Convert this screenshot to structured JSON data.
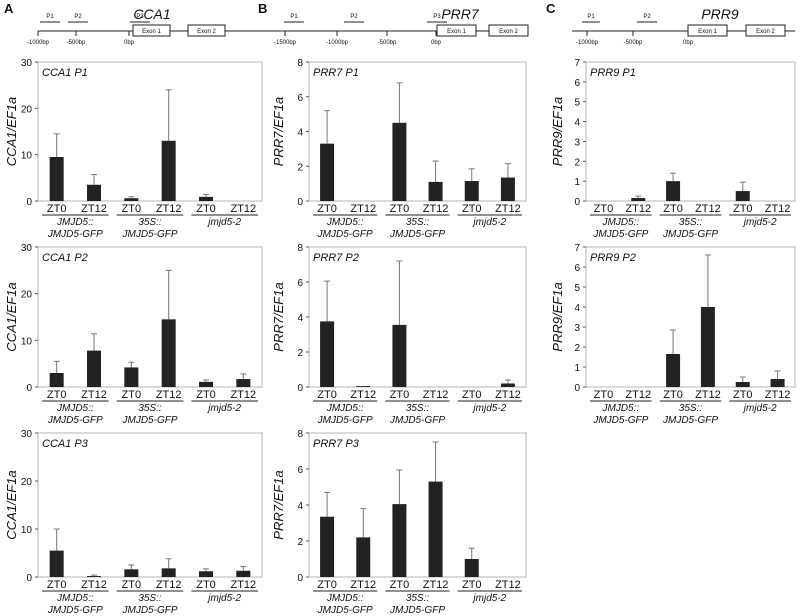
{
  "panels": [
    {
      "letter": "A",
      "gene": "CCA1",
      "diagram": {
        "primers": [
          "P1",
          "P2",
          "P3"
        ],
        "positions": [
          "-1000bp",
          "-500bp",
          "0bp"
        ],
        "exons": [
          "Exon 1",
          "Exon 2"
        ]
      }
    },
    {
      "letter": "B",
      "gene": "PRR7",
      "diagram": {
        "primers": [
          "P1",
          "P2",
          "P3"
        ],
        "positions": [
          "-1500bp",
          "-1000bp",
          "-500bp",
          "0bp"
        ],
        "exons": [
          "Exon 1",
          "Exon 2"
        ]
      }
    },
    {
      "letter": "C",
      "gene": "PRR9",
      "diagram": {
        "primers": [
          "P1",
          "P2"
        ],
        "positions": [
          "-1000bp",
          "-500bp",
          "0bp"
        ],
        "exons": [
          "Exon 1",
          "Exon 2"
        ]
      }
    }
  ],
  "groups": [
    {
      "line1": "JMJD5::",
      "line2": "JMJD5-GFP"
    },
    {
      "line1": "35S::",
      "line2": "JMJD5-GFP"
    },
    {
      "line1": "jmjd5-2",
      "line2": ""
    }
  ],
  "categories": [
    "ZT0",
    "ZT12",
    "ZT0",
    "ZT12",
    "ZT0",
    "ZT12"
  ],
  "chart_data": [
    {
      "type": "bar",
      "panel": "A",
      "title": "CCA1 P1",
      "ylabel": "CCA1/EF1a",
      "ylim": [
        0,
        30
      ],
      "ticks": [
        0,
        10,
        20,
        30
      ],
      "values": [
        9.5,
        3.5,
        0.6,
        13,
        0.9,
        0
      ],
      "errors": [
        5,
        2.2,
        0.3,
        11,
        0.5,
        0
      ]
    },
    {
      "type": "bar",
      "panel": "A",
      "title": "CCA1 P2",
      "ylabel": "CCA1/EF1a",
      "ylim": [
        0,
        30
      ],
      "ticks": [
        0,
        10,
        20,
        30
      ],
      "values": [
        3,
        7.8,
        4.2,
        14.5,
        1.1,
        1.7
      ],
      "errors": [
        2.5,
        3.6,
        1.1,
        10.5,
        0.4,
        1.1
      ]
    },
    {
      "type": "bar",
      "panel": "A",
      "title": "CCA1 P3",
      "ylabel": "CCA1/EF1a",
      "ylim": [
        0,
        30
      ],
      "ticks": [
        0,
        10,
        20,
        30
      ],
      "values": [
        5.5,
        0.2,
        1.6,
        1.8,
        1.2,
        1.3
      ],
      "errors": [
        4.5,
        0.2,
        0.9,
        2,
        0.5,
        0.9
      ]
    },
    {
      "type": "bar",
      "panel": "B",
      "title": "PRR7 P1",
      "ylabel": "PRR7/EF1a",
      "ylim": [
        0,
        8
      ],
      "ticks": [
        0,
        2,
        4,
        6,
        8
      ],
      "values": [
        3.3,
        0,
        4.5,
        1.1,
        1.15,
        1.35
      ],
      "errors": [
        1.9,
        0,
        2.3,
        1.2,
        0.7,
        0.8
      ]
    },
    {
      "type": "bar",
      "panel": "B",
      "title": "PRR7 P2",
      "ylabel": "PRR7/EF1a",
      "ylim": [
        0,
        8
      ],
      "ticks": [
        0,
        2,
        4,
        6,
        8
      ],
      "values": [
        3.75,
        0.05,
        3.55,
        0,
        0,
        0.2
      ],
      "errors": [
        2.3,
        0,
        3.65,
        0,
        0,
        0.2
      ]
    },
    {
      "type": "bar",
      "panel": "B",
      "title": "PRR7 P3",
      "ylabel": "PRR7/EF1a",
      "ylim": [
        0,
        8
      ],
      "ticks": [
        0,
        2,
        4,
        6,
        8
      ],
      "values": [
        3.35,
        2.2,
        4.05,
        5.3,
        1.0,
        0
      ],
      "errors": [
        1.35,
        1.6,
        1.9,
        2.2,
        0.6,
        0
      ]
    },
    {
      "type": "bar",
      "panel": "C",
      "title": "PRR9 P1",
      "ylabel": "PRR9/EF1a",
      "ylim": [
        0,
        7
      ],
      "ticks": [
        0,
        1,
        2,
        3,
        4,
        5,
        6,
        7
      ],
      "values": [
        0,
        0.15,
        1.0,
        0,
        0.5,
        0
      ],
      "errors": [
        0,
        0.1,
        0.4,
        0,
        0.45,
        0
      ]
    },
    {
      "type": "bar",
      "panel": "C",
      "title": "PRR9 P2",
      "ylabel": "PRR9/EF1a",
      "ylim": [
        0,
        7
      ],
      "ticks": [
        0,
        1,
        2,
        3,
        4,
        5,
        6,
        7
      ],
      "values": [
        0,
        0,
        1.65,
        4.0,
        0.25,
        0.4
      ],
      "errors": [
        0,
        0,
        1.2,
        2.6,
        0.25,
        0.4
      ]
    }
  ]
}
